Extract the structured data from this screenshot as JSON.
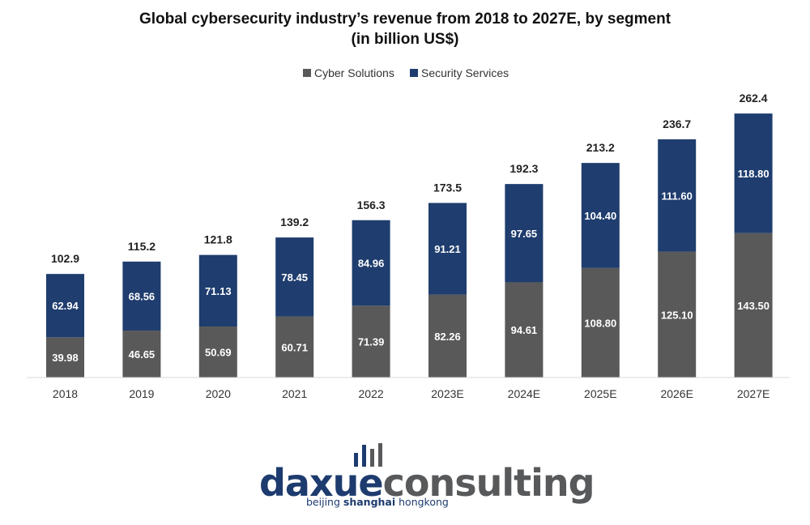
{
  "chart_data": {
    "type": "bar",
    "stacked": true,
    "title_lines": [
      "Global cybersecurity industry’s revenue from 2018 to 2027E, by segment",
      "(in billion US$)"
    ],
    "categories": [
      "2018",
      "2019",
      "2020",
      "2021",
      "2022",
      "2023E",
      "2024E",
      "2025E",
      "2026E",
      "2027E"
    ],
    "series": [
      {
        "name": "Cyber Solutions",
        "color": "#595959",
        "values": [
          39.98,
          46.65,
          50.69,
          60.71,
          71.39,
          82.26,
          94.61,
          108.8,
          125.1,
          143.5
        ],
        "labels": [
          "39.98",
          "46.65",
          "50.69",
          "60.71",
          "71.39",
          "82.26",
          "94.61",
          "108.80",
          "125.10",
          "143.50"
        ]
      },
      {
        "name": "Security Services",
        "color": "#1f3d6e",
        "values": [
          62.94,
          68.56,
          71.13,
          78.45,
          84.96,
          91.21,
          97.65,
          104.4,
          111.6,
          118.8
        ],
        "labels": [
          "62.94",
          "68.56",
          "71.13",
          "78.45",
          "84.96",
          "91.21",
          "97.65",
          "104.40",
          "111.60",
          "118.80"
        ]
      }
    ],
    "totals": [
      102.9,
      115.2,
      121.8,
      139.2,
      156.3,
      173.5,
      192.3,
      213.2,
      236.7,
      262.4
    ],
    "total_labels": [
      "102.9",
      "115.2",
      "121.8",
      "139.2",
      "156.3",
      "173.5",
      "192.3",
      "213.2",
      "236.7",
      "262.4"
    ],
    "ylim": [
      0,
      262.4
    ],
    "xlabel": "",
    "ylabel": "",
    "grid": false,
    "legend_position": "top-center"
  },
  "logo": {
    "part1": "daxue",
    "part2": "consulting",
    "tagline_words": [
      "beijing",
      "shanghai",
      "hongkong"
    ],
    "color_dark": "#1d3b6e",
    "color_gray": "#58595b"
  }
}
